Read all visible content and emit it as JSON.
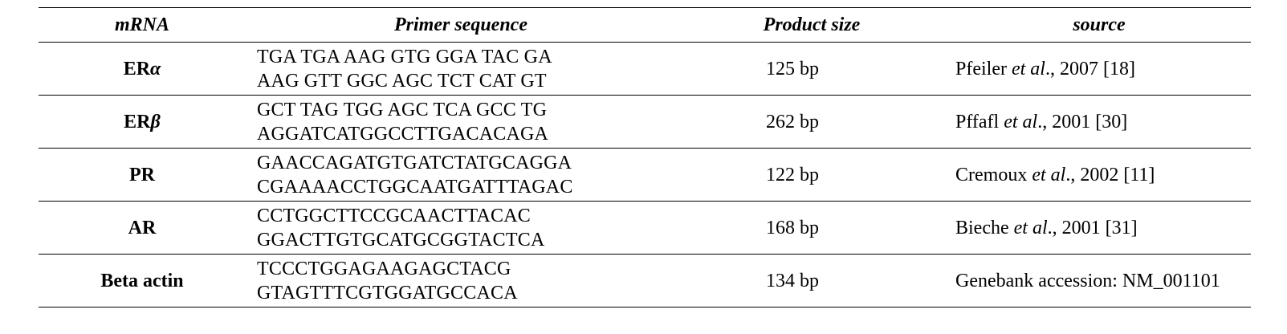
{
  "table": {
    "headers": {
      "mrna": "mRNA",
      "primer": "Primer sequence",
      "size": "Product size",
      "source": "source"
    },
    "rows": [
      {
        "mrna_base": "ER",
        "mrna_greek": "α",
        "primer_forward": "TGA TGA AAG GTG GGA TAC GA",
        "primer_reverse": "AAG GTT GGC AGC TCT CAT GT",
        "size": "125 bp",
        "source_author": "Pfeiler ",
        "source_etal": "et al",
        "source_rest": "., 2007 [18]"
      },
      {
        "mrna_base": "ER",
        "mrna_greek": "β",
        "primer_forward": "GCT TAG TGG AGC TCA GCC TG",
        "primer_reverse": "AGGATCATGGCCTTGACACAGA",
        "size": "262 bp",
        "source_author": "Pffafl ",
        "source_etal": "et al",
        "source_rest": "., 2001 [30]"
      },
      {
        "mrna_base": "PR",
        "mrna_greek": "",
        "primer_forward": "GAACCAGATGTGATCTATGCAGGA",
        "primer_reverse": "CGAAAACCTGGCAATGATTTAGAC",
        "size": "122 bp",
        "source_author": "Cremoux ",
        "source_etal": "et al",
        "source_rest": "., 2002 [11]"
      },
      {
        "mrna_base": "AR",
        "mrna_greek": "",
        "primer_forward": "CCTGGCTTCCGCAACTTACAC",
        "primer_reverse": "GGACTTGTGCATGCGGTACTCA",
        "size": "168 bp",
        "source_author": "Bieche ",
        "source_etal": "et al",
        "source_rest": "., 2001 [31]"
      },
      {
        "mrna_base": "Beta actin",
        "mrna_greek": "",
        "primer_forward": "TCCCTGGAGAAGAGCTACG",
        "primer_reverse": "GTAGTTTCGTGGATGCCACA",
        "size": "134 bp",
        "source_author": "Genebank accession: NM_001101",
        "source_etal": "",
        "source_rest": ""
      }
    ]
  }
}
